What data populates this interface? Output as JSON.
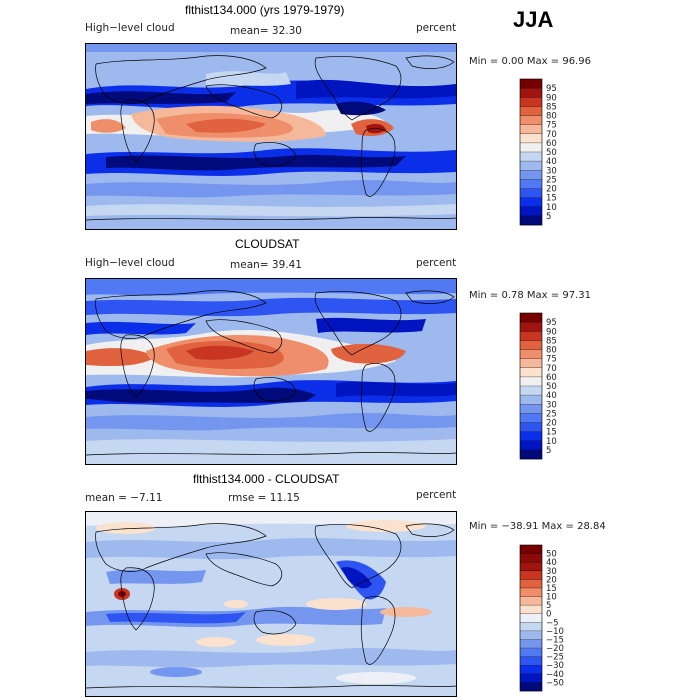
{
  "season": "JJA",
  "panels": [
    {
      "title": "flthist134.000 (yrs 1979-1979)",
      "left": "High−level cloud",
      "mean": "mean=   32.30",
      "right": "percent",
      "stats": "Min =    0.00 Max =   96.96"
    },
    {
      "title": "CLOUDSAT",
      "left": "High−level cloud",
      "mean": "mean=   39.41",
      "right": "percent",
      "stats": "Min =    0.78 Max =   97.31"
    },
    {
      "title": "flthist134.000 - CLOUDSAT",
      "left": "mean =   −7.11",
      "mean": "rmse =   11.15",
      "right": "percent",
      "stats": "Min = −38.91 Max =   28.84"
    }
  ],
  "chart_data": [
    {
      "type": "heatmap",
      "title": "flthist134.000 (yrs 1979-1979)",
      "variable": "High−level cloud",
      "units": "percent",
      "mean": 32.3,
      "min": 0.0,
      "max": 96.96,
      "colorbar_levels": [
        5,
        10,
        15,
        20,
        25,
        30,
        40,
        50,
        60,
        70,
        75,
        80,
        85,
        90,
        95
      ],
      "colors": [
        "#000a7a",
        "#0015c0",
        "#0b2fe8",
        "#2e55f2",
        "#5079f3",
        "#7596ef",
        "#9db9ee",
        "#c6d7f2",
        "#f0f0f0",
        "#fbe2cf",
        "#f6b89a",
        "#ef8e6b",
        "#e0623f",
        "#c83520",
        "#a01510",
        "#760000"
      ]
    },
    {
      "type": "heatmap",
      "title": "CLOUDSAT",
      "variable": "High−level cloud",
      "units": "percent",
      "mean": 39.41,
      "min": 0.78,
      "max": 97.31,
      "colorbar_levels": [
        5,
        10,
        15,
        20,
        25,
        30,
        40,
        50,
        60,
        70,
        75,
        80,
        85,
        90,
        95
      ],
      "colors": [
        "#000a7a",
        "#0015c0",
        "#0b2fe8",
        "#2e55f2",
        "#5079f3",
        "#7596ef",
        "#9db9ee",
        "#c6d7f2",
        "#f0f0f0",
        "#fbe2cf",
        "#f6b89a",
        "#ef8e6b",
        "#e0623f",
        "#c83520",
        "#a01510",
        "#760000"
      ]
    },
    {
      "type": "heatmap",
      "title": "flthist134.000 - CLOUDSAT",
      "units": "percent",
      "mean": -7.11,
      "rmse": 11.15,
      "min": -38.91,
      "max": 28.84,
      "colorbar_levels": [
        -50,
        -40,
        -30,
        -25,
        -20,
        -15,
        -10,
        -5,
        0,
        5,
        10,
        15,
        20,
        30,
        40,
        50
      ],
      "colors": [
        "#000a7a",
        "#0015c0",
        "#0b2fe8",
        "#2e55f2",
        "#5079f3",
        "#7596ef",
        "#9db9ee",
        "#c6d7f2",
        "#eef0f8",
        "#fbe2cf",
        "#f6b89a",
        "#ef8e6b",
        "#e0623f",
        "#c83520",
        "#a01510",
        "#8a0a08",
        "#760000"
      ]
    }
  ]
}
